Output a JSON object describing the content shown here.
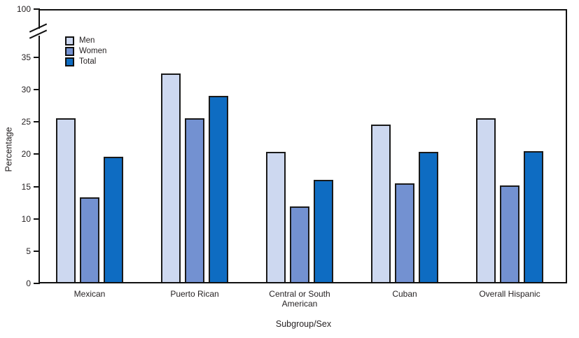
{
  "chart_data": {
    "type": "bar",
    "title": "",
    "xlabel": "Subgroup/Sex",
    "ylabel": "Percentage",
    "categories": [
      "Mexican",
      "Puerto Rican",
      "Central or South American",
      "Cuban",
      "Overall Hispanic"
    ],
    "series": [
      {
        "name": "Men",
        "color": "#cdd8f0",
        "values": [
          25.1,
          32.1,
          19.9,
          24.2,
          25.1
        ]
      },
      {
        "name": "Women",
        "color": "#7391d1",
        "values": [
          12.9,
          25.1,
          11.5,
          15.1,
          14.7
        ]
      },
      {
        "name": "Total",
        "color": "#0e6cc2",
        "values": [
          19.2,
          28.6,
          15.6,
          19.9,
          20.0
        ]
      }
    ],
    "yticks": [
      0,
      5,
      10,
      15,
      20,
      25,
      30,
      35
    ],
    "y_top_tick_label": "100",
    "axis_break": true,
    "ylim": [
      0,
      35
    ],
    "grid": false,
    "legend_position": "upper-left-inside",
    "axis_color": "#111111",
    "text_color": "#231f20"
  }
}
